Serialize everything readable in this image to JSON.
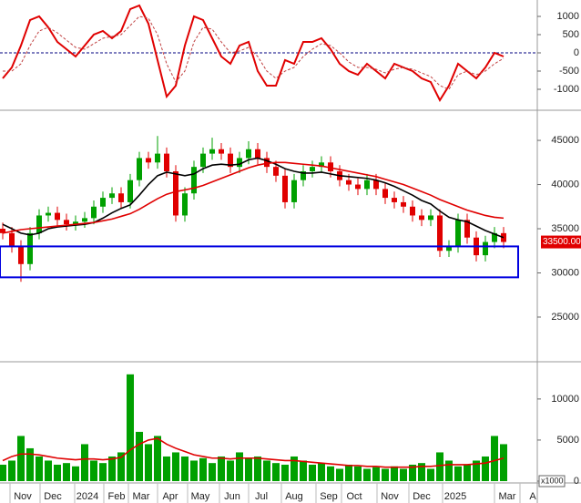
{
  "chart_data": [
    {
      "type": "line",
      "ylim": [
        -1500,
        1450
      ],
      "yticks": [
        1000,
        500,
        0,
        -500,
        -1000
      ],
      "zero_line": 0,
      "zero_line_color": "#000080",
      "series": [
        {
          "color": "#e00000",
          "style": "solid",
          "values": [
            -700,
            -400,
            200,
            900,
            1000,
            700,
            300,
            100,
            -100,
            200,
            500,
            600,
            400,
            600,
            1200,
            1300,
            800,
            -200,
            -1200,
            -900,
            200,
            1000,
            900,
            400,
            -100,
            -300,
            200,
            300,
            -500,
            -900,
            -900,
            -200,
            -300,
            300,
            300,
            400,
            100,
            -300,
            -500,
            -600,
            -300,
            -500,
            -700,
            -300,
            -400,
            -500,
            -700,
            -800,
            -1300,
            -900,
            -300,
            -500,
            -700,
            -400,
            0,
            -100
          ]
        },
        {
          "color": "#c04040",
          "style": "dashed",
          "values": [
            -500,
            -500,
            -300,
            200,
            600,
            700,
            550,
            350,
            150,
            100,
            250,
            400,
            450,
            500,
            750,
            1000,
            950,
            500,
            -300,
            -800,
            -500,
            300,
            700,
            650,
            300,
            0,
            50,
            150,
            -100,
            -500,
            -700,
            -500,
            -400,
            -100,
            100,
            250,
            200,
            0,
            -250,
            -400,
            -400,
            -450,
            -550,
            -450,
            -400,
            -450,
            -550,
            -650,
            -900,
            -1000,
            -600,
            -500,
            -600,
            -500,
            -300,
            -150
          ]
        }
      ]
    },
    {
      "type": "candlestick",
      "x": [
        0,
        1,
        2,
        3,
        4,
        5,
        6,
        7,
        8,
        9,
        10,
        11,
        12,
        13,
        14,
        15,
        16,
        17,
        18,
        19,
        20,
        21,
        22,
        23,
        24,
        25,
        26,
        27,
        28,
        29,
        30,
        31,
        32,
        33,
        34,
        35,
        36,
        37,
        38,
        39,
        40,
        41,
        42,
        43,
        44,
        45,
        46,
        47,
        48,
        49,
        50,
        51,
        52,
        53,
        54,
        55
      ],
      "xlim": [
        -0.3,
        58.7
      ],
      "open": [
        35000,
        34500,
        33000,
        31000,
        34500,
        36500,
        36800,
        36000,
        35500,
        35800,
        36200,
        37500,
        38500,
        39000,
        38000,
        40500,
        43000,
        42500,
        43500,
        41500,
        36500,
        39000,
        42000,
        43500,
        44000,
        43500,
        42000,
        43000,
        44000,
        43000,
        42000,
        41000,
        38000,
        40500,
        41500,
        42000,
        42500,
        41500,
        40500,
        40000,
        39500,
        40500,
        39500,
        38500,
        38000,
        37500,
        36500,
        36000,
        36500,
        32500,
        33000,
        36000,
        34000,
        32000,
        33500,
        34500
      ],
      "high": [
        35700,
        35200,
        33700,
        35200,
        37200,
        37500,
        37500,
        36700,
        36500,
        36900,
        38200,
        39200,
        39700,
        39700,
        41200,
        43700,
        43700,
        45500,
        44200,
        42200,
        39700,
        42700,
        44200,
        45300,
        44700,
        44200,
        43700,
        44900,
        44700,
        43700,
        42700,
        41700,
        41200,
        42200,
        42700,
        43200,
        43200,
        42200,
        41200,
        40700,
        41200,
        41200,
        40200,
        39200,
        38700,
        38200,
        37200,
        37200,
        37200,
        33700,
        36700,
        36700,
        34700,
        34200,
        35200,
        35200
      ],
      "low": [
        33800,
        32300,
        29000,
        30300,
        33800,
        35800,
        35300,
        34800,
        34800,
        35100,
        35500,
        36800,
        37800,
        37300,
        37300,
        39800,
        41800,
        41800,
        40800,
        35800,
        35800,
        38300,
        41300,
        42800,
        42800,
        41300,
        41300,
        42300,
        42300,
        41300,
        40300,
        37300,
        37300,
        39800,
        40800,
        41300,
        40800,
        39800,
        39300,
        38800,
        38800,
        38800,
        37800,
        37300,
        36800,
        35800,
        35300,
        35300,
        31800,
        31800,
        32300,
        33300,
        31300,
        31300,
        32800,
        32800
      ],
      "close": [
        34500,
        33000,
        31000,
        34500,
        36500,
        36800,
        36000,
        35500,
        35800,
        36200,
        37500,
        38500,
        39000,
        38000,
        40500,
        43000,
        42500,
        43500,
        41500,
        36500,
        39000,
        42000,
        43500,
        44000,
        43500,
        42000,
        43000,
        44000,
        43000,
        42000,
        41000,
        38000,
        40500,
        41500,
        42000,
        42500,
        41500,
        40500,
        40000,
        39500,
        40500,
        39500,
        38500,
        38000,
        37500,
        36500,
        36000,
        36500,
        32500,
        33000,
        36000,
        34000,
        32000,
        33500,
        34500,
        33500
      ],
      "up_color": "#00a000",
      "down_color": "#e00000",
      "series": [
        {
          "color": "#000000",
          "values": [
            35500,
            35000,
            34500,
            34300,
            34500,
            35000,
            35200,
            35300,
            35400,
            35500,
            35700,
            36200,
            36800,
            37300,
            37700,
            38800,
            40000,
            41000,
            41400,
            41200,
            41000,
            41200,
            41800,
            42200,
            42300,
            42200,
            42300,
            42800,
            43000,
            42700,
            42300,
            41800,
            41500,
            41300,
            41300,
            41400,
            41200,
            41000,
            40900,
            40800,
            40700,
            40500,
            40200,
            39800,
            39300,
            38800,
            38200,
            37800,
            37000,
            36300,
            36000,
            35800,
            35300,
            34800,
            34400,
            34000
          ]
        },
        {
          "color": "#e00000",
          "values": [
            34500,
            34700,
            34900,
            35000,
            35100,
            35200,
            35300,
            35400,
            35500,
            35600,
            35700,
            35900,
            36100,
            36400,
            36700,
            37200,
            37800,
            38400,
            38900,
            39200,
            39400,
            39600,
            39900,
            40300,
            40700,
            41100,
            41500,
            41900,
            42200,
            42400,
            42500,
            42500,
            42400,
            42300,
            42200,
            42100,
            41900,
            41700,
            41500,
            41300,
            41100,
            40900,
            40600,
            40300,
            40000,
            39600,
            39200,
            38800,
            38300,
            37900,
            37500,
            37100,
            36800,
            36500,
            36300,
            36200
          ]
        }
      ],
      "ylim": [
        20150,
        48100
      ],
      "yticks": [
        45000,
        40000,
        35000,
        30000,
        25000
      ],
      "last_price": 33500,
      "last_price_label": "33500.00",
      "highlight_box": {
        "color": "#0000e0",
        "y_range": [
          29500,
          33000
        ],
        "x_range": [
          -0.3,
          56.6
        ]
      }
    },
    {
      "type": "bar",
      "color": "#00a000",
      "values": [
        2000,
        2500,
        5500,
        4000,
        3000,
        2500,
        2000,
        2200,
        1800,
        4500,
        2500,
        2200,
        3000,
        3500,
        13000,
        6000,
        4500,
        5500,
        3000,
        3500,
        3000,
        2500,
        2800,
        2200,
        3000,
        2500,
        3500,
        2800,
        3000,
        2500,
        2200,
        2000,
        3000,
        2500,
        2000,
        2200,
        1800,
        1500,
        2000,
        1800,
        1500,
        1700,
        1500,
        1800,
        1500,
        2000,
        2200,
        1500,
        3500,
        2500,
        1800,
        2000,
        2500,
        3000,
        5500,
        4500
      ],
      "series": [
        {
          "color": "#e00000",
          "values": [
            2500,
            3000,
            3300,
            3300,
            3200,
            3000,
            2800,
            2700,
            2600,
            2700,
            2700,
            2600,
            2700,
            2900,
            3800,
            4500,
            5000,
            5200,
            4500,
            4000,
            3600,
            3200,
            3000,
            2800,
            2800,
            2700,
            2800,
            2800,
            2800,
            2700,
            2600,
            2500,
            2500,
            2400,
            2300,
            2200,
            2100,
            2000,
            1900,
            1900,
            1800,
            1800,
            1700,
            1700,
            1700,
            1700,
            1800,
            1800,
            1900,
            2000,
            2000,
            2000,
            2100,
            2200,
            2500,
            2800
          ]
        }
      ],
      "ylim": [
        0,
        14200
      ],
      "yticks": [
        10000,
        5000,
        0
      ],
      "unit_label": "x1000",
      "xticks": [
        {
          "value": 2.2,
          "label": "Nov"
        },
        {
          "value": 5.5,
          "label": "Dec"
        },
        {
          "value": 9.3,
          "label": "2024"
        },
        {
          "value": 12.5,
          "label": "Feb"
        },
        {
          "value": 15.2,
          "label": "Mar"
        },
        {
          "value": 18.4,
          "label": "Apr"
        },
        {
          "value": 21.7,
          "label": "May"
        },
        {
          "value": 25.2,
          "label": "Jun"
        },
        {
          "value": 28.4,
          "label": "Jul"
        },
        {
          "value": 32,
          "label": "Aug"
        },
        {
          "value": 35.8,
          "label": "Sep"
        },
        {
          "value": 38.6,
          "label": "Oct"
        },
        {
          "value": 42.5,
          "label": "Nov"
        },
        {
          "value": 46,
          "label": "Dec"
        },
        {
          "value": 49.7,
          "label": "2025"
        },
        {
          "value": 55.4,
          "label": "Mar"
        },
        {
          "value": 58.2,
          "label": "A"
        }
      ]
    }
  ]
}
